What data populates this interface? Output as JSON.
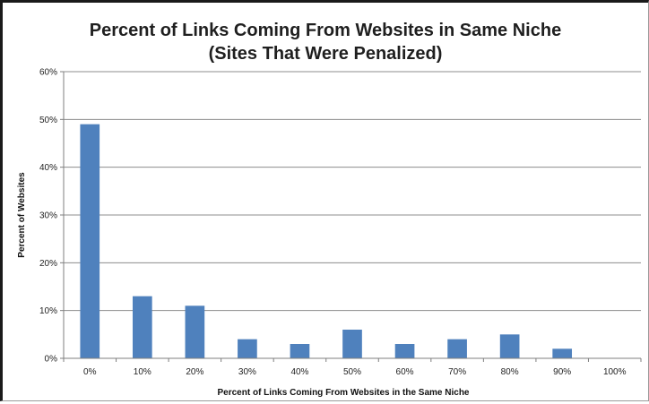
{
  "chart_data": {
    "type": "bar",
    "title": "Percent of Links Coming From Websites in Same Niche",
    "subtitle": "(Sites That Were Penalized)",
    "xlabel": "Percent of Links Coming From Websites in the Same Niche",
    "ylabel": "Percent of Websites",
    "categories": [
      "0%",
      "10%",
      "20%",
      "30%",
      "40%",
      "50%",
      "60%",
      "70%",
      "80%",
      "90%",
      "100%"
    ],
    "values": [
      49,
      13,
      11,
      4,
      3,
      6,
      3,
      4,
      5,
      2,
      0
    ],
    "ylim": [
      0,
      60
    ],
    "yticks": [
      "0%",
      "10%",
      "20%",
      "30%",
      "40%",
      "50%",
      "60%"
    ],
    "grid": true,
    "bar_color": "#4f81bd"
  }
}
